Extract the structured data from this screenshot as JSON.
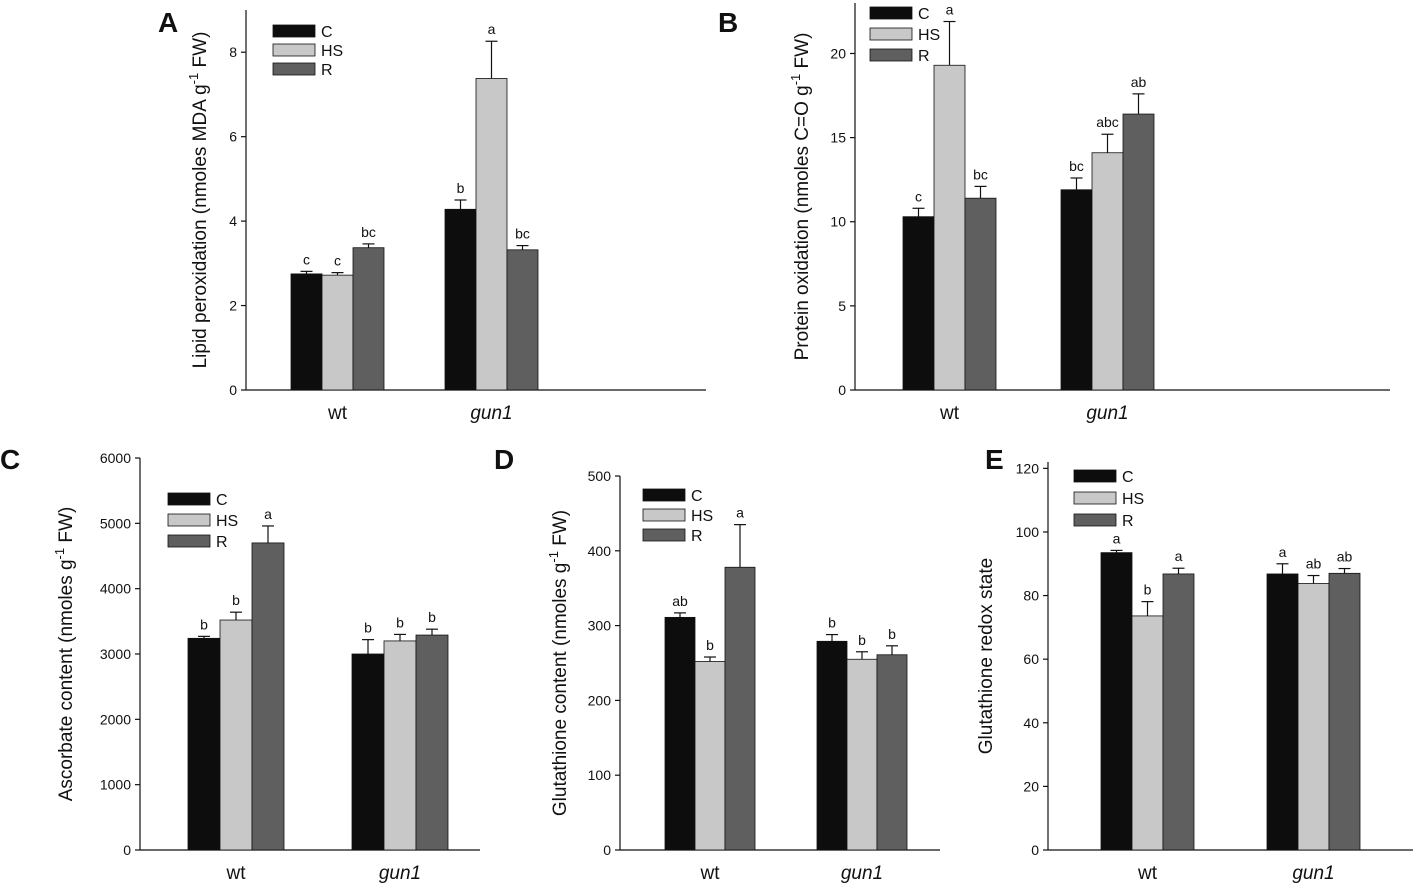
{
  "colors": {
    "C": "#0d0d0d",
    "HS": "#c8c8c8",
    "R": "#5f5f5f",
    "axis": "#111111"
  },
  "legend_labels": [
    "C",
    "HS",
    "R"
  ],
  "chart_data": [
    {
      "panel": "A",
      "type": "bar",
      "ylabel_main": "Lipid peroxidation (nmoles MDA g",
      "ylabel_sup": "-1",
      "ylabel_end": " FW)",
      "categories": [
        "wt",
        "gun1"
      ],
      "ylim": [
        0,
        9
      ],
      "yticks": [
        0,
        2,
        4,
        6,
        8
      ],
      "series": [
        {
          "name": "C",
          "values": [
            2.75,
            4.28
          ],
          "errors": [
            0.06,
            0.22
          ],
          "letters": [
            "c",
            "b"
          ]
        },
        {
          "name": "HS",
          "values": [
            2.72,
            7.38
          ],
          "errors": [
            0.06,
            0.88
          ],
          "letters": [
            "c",
            "a"
          ]
        },
        {
          "name": "R",
          "values": [
            3.37,
            3.32
          ],
          "errors": [
            0.09,
            0.1
          ],
          "letters": [
            "bc",
            "bc"
          ]
        }
      ]
    },
    {
      "panel": "B",
      "type": "bar",
      "ylabel_main": "Protein oxidation (nmoles C=O g",
      "ylabel_sup": "-1",
      "ylabel_end": " FW)",
      "categories": [
        "wt",
        "gun1"
      ],
      "ylim": [
        0,
        23
      ],
      "yticks": [
        0,
        5,
        10,
        15,
        20
      ],
      "series": [
        {
          "name": "C",
          "values": [
            10.3,
            11.9
          ],
          "errors": [
            0.5,
            0.7
          ],
          "letters": [
            "c",
            "bc"
          ]
        },
        {
          "name": "HS",
          "values": [
            19.3,
            14.1
          ],
          "errors": [
            2.6,
            1.1
          ],
          "letters": [
            "a",
            "abc"
          ]
        },
        {
          "name": "R",
          "values": [
            11.4,
            16.4
          ],
          "errors": [
            0.7,
            1.2
          ],
          "letters": [
            "bc",
            "ab"
          ]
        }
      ]
    },
    {
      "panel": "C",
      "type": "bar",
      "ylabel_main": "Ascorbate content (nmoles g",
      "ylabel_sup": "-1",
      "ylabel_end": " FW)",
      "categories": [
        "wt",
        "gun1"
      ],
      "ylim": [
        0,
        6000
      ],
      "yticks": [
        0,
        1000,
        2000,
        3000,
        4000,
        5000,
        6000
      ],
      "series": [
        {
          "name": "C",
          "values": [
            3240,
            3000
          ],
          "errors": [
            30,
            220
          ],
          "letters": [
            "b",
            "b"
          ]
        },
        {
          "name": "HS",
          "values": [
            3520,
            3200
          ],
          "errors": [
            120,
            100
          ],
          "letters": [
            "b",
            "b"
          ]
        },
        {
          "name": "R",
          "values": [
            4700,
            3290
          ],
          "errors": [
            260,
            90
          ],
          "letters": [
            "a",
            "b"
          ]
        }
      ]
    },
    {
      "panel": "D",
      "type": "bar",
      "ylabel_main": "Glutathione content (nmoles g",
      "ylabel_sup": "-1",
      "ylabel_end": " FW)",
      "categories": [
        "wt",
        "gun1"
      ],
      "ylim": [
        0,
        500
      ],
      "yticks": [
        0,
        100,
        200,
        300,
        400,
        500
      ],
      "series": [
        {
          "name": "C",
          "values": [
            311,
            279
          ],
          "errors": [
            6,
            9
          ],
          "letters": [
            "ab",
            "b"
          ]
        },
        {
          "name": "HS",
          "values": [
            252,
            255
          ],
          "errors": [
            6,
            10
          ],
          "letters": [
            "b",
            "b"
          ]
        },
        {
          "name": "R",
          "values": [
            378,
            261
          ],
          "errors": [
            57,
            12
          ],
          "letters": [
            "a",
            "b"
          ]
        }
      ]
    },
    {
      "panel": "E",
      "type": "bar",
      "ylabel_main": "Glutathione redox state",
      "ylabel_sup": "",
      "ylabel_end": "",
      "categories": [
        "wt",
        "gun1"
      ],
      "ylim": [
        0,
        122
      ],
      "yticks": [
        0,
        20,
        40,
        60,
        80,
        100,
        120
      ],
      "series": [
        {
          "name": "C",
          "values": [
            93.5,
            86.8
          ],
          "errors": [
            0.7,
            3.2
          ],
          "letters": [
            "a",
            "a"
          ]
        },
        {
          "name": "HS",
          "values": [
            73.6,
            83.8
          ],
          "errors": [
            4.5,
            2.5
          ],
          "letters": [
            "b",
            "ab"
          ]
        },
        {
          "name": "R",
          "values": [
            86.8,
            87.0
          ],
          "errors": [
            1.8,
            1.5
          ],
          "letters": [
            "a",
            "ab"
          ]
        }
      ]
    }
  ]
}
